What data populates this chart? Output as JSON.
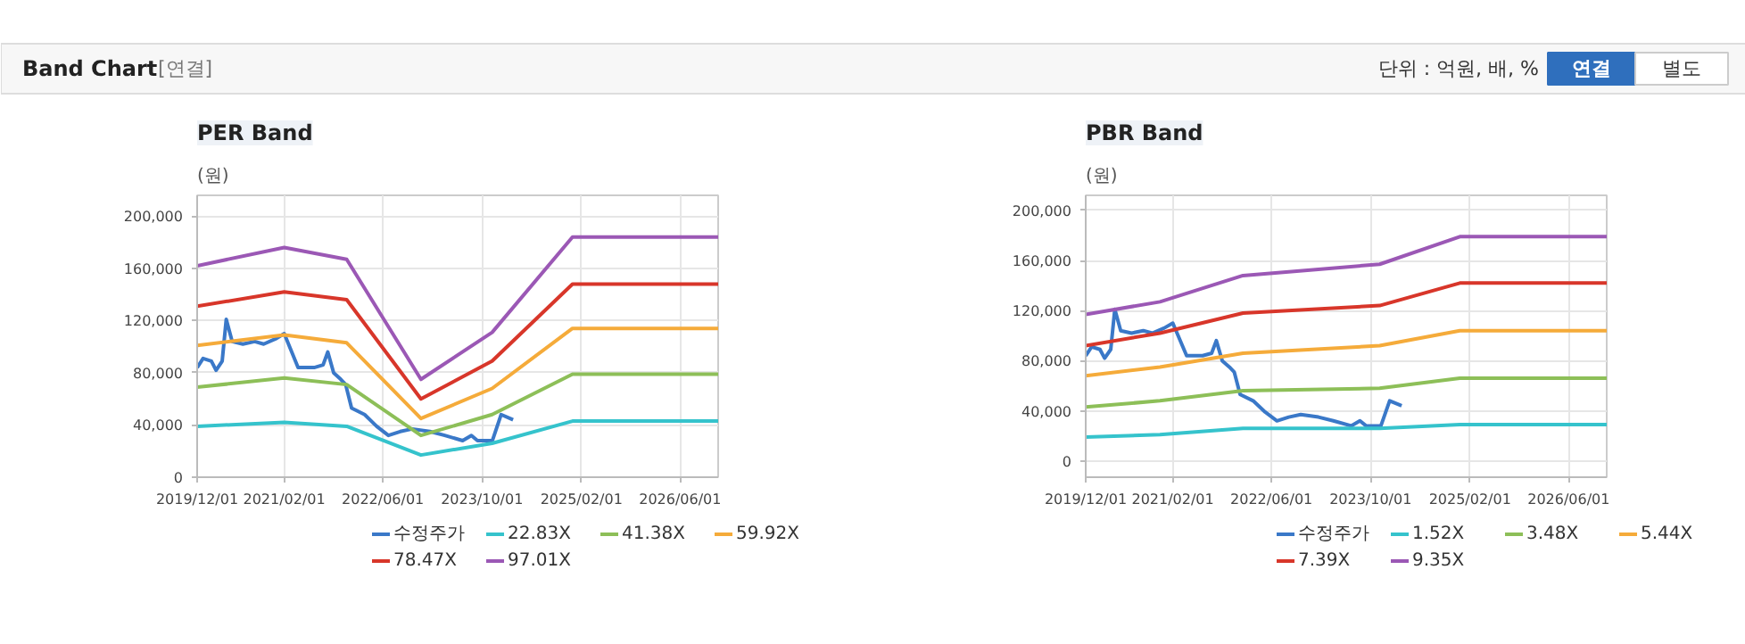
{
  "chart_data": [
    {
      "type": "other",
      "title": "Band Chart",
      "annotations": [
        "[연결]",
        "단위 : 억원, 배, %",
        "연결",
        "별도"
      ]
    },
    {
      "type": "line",
      "title": "PER Band",
      "ylabel": "(원)",
      "legend": "bottom",
      "grid": true,
      "line_style": "solid",
      "xlim": [
        "2019-12-01",
        "2026-12-05"
      ],
      "xticks": [
        {
          "value": "2019-12-01",
          "label": "2019/12/01"
        },
        {
          "value": "2021-02-01",
          "label": "2021/02/01"
        },
        {
          "value": "2022-06-01",
          "label": "2022/06/01"
        },
        {
          "value": "2023-10-01",
          "label": "2023/10/01"
        },
        {
          "value": "2025-02-01",
          "label": "2025/02/01"
        },
        {
          "value": "2026-06-01",
          "label": "2026/06/01"
        }
      ],
      "ylim": [
        0,
        216000
      ],
      "yticks": [
        {
          "value": 0,
          "label": "0"
        },
        {
          "value": 40000,
          "label": "40,000"
        },
        {
          "value": 80000,
          "label": "80,000"
        },
        {
          "value": 120000,
          "label": "120,000"
        },
        {
          "value": 160000,
          "label": "160,000"
        },
        {
          "value": 200000,
          "label": "200,000"
        }
      ],
      "series": [
        {
          "name": "수정주가",
          "color": "#3a78c8",
          "x": [
            "2019-12-01",
            "2019-12-30",
            "2020-02-09",
            "2020-03-03",
            "2020-04-02",
            "2020-04-22",
            "2020-05-21",
            "2020-07-13",
            "2020-09-09",
            "2020-10-23",
            "2020-12-20",
            "2021-02-01",
            "2021-04-10",
            "2021-06-28",
            "2021-08-11",
            "2021-09-03",
            "2021-10-02",
            "2021-11-06",
            "2021-11-30",
            "2021-12-29",
            "2022-03-03",
            "2022-05-01",
            "2022-06-28",
            "2022-08-25",
            "2022-10-23",
            "2023-01-18",
            "2023-04-01",
            "2023-06-28",
            "2023-08-10",
            "2023-09-09",
            "2023-11-21",
            "2024-01-03",
            "2024-03-02"
          ],
          "values": [
            84000,
            91000,
            89000,
            82000,
            89000,
            121000,
            104000,
            102000,
            104000,
            102000,
            106000,
            110000,
            84000,
            84000,
            86000,
            96000,
            80000,
            75000,
            71000,
            53000,
            48000,
            39000,
            32000,
            35000,
            37000,
            35000,
            32000,
            28000,
            32000,
            28000,
            28000,
            48000,
            44000
          ]
        },
        {
          "name": "22.83X",
          "color": "#35c3cc",
          "x": [
            "2019-12-01",
            "2021-02-01",
            "2021-12-05",
            "2022-12-05",
            "2023-11-20",
            "2024-12-19",
            "2026-12-05"
          ],
          "values": [
            39000,
            42000,
            39000,
            17000,
            26000,
            43000,
            43000
          ]
        },
        {
          "name": "41.38X",
          "color": "#8dbf58",
          "x": [
            "2019-12-01",
            "2021-02-01",
            "2021-12-05",
            "2022-12-05",
            "2023-11-20",
            "2024-12-19",
            "2026-12-05"
          ],
          "values": [
            69000,
            76000,
            71000,
            32000,
            48000,
            79000,
            79000
          ]
        },
        {
          "name": "59.92X",
          "color": "#f5ab3a",
          "x": [
            "2019-12-01",
            "2021-02-01",
            "2021-12-05",
            "2022-12-05",
            "2023-11-20",
            "2024-12-19",
            "2026-12-05"
          ],
          "values": [
            101000,
            109000,
            103000,
            45000,
            68000,
            114000,
            114000
          ]
        },
        {
          "name": "78.47X",
          "color": "#d8362a",
          "x": [
            "2019-12-01",
            "2021-02-01",
            "2021-12-05",
            "2022-12-05",
            "2023-11-20",
            "2024-12-19",
            "2026-12-05"
          ],
          "values": [
            131000,
            142000,
            136000,
            60000,
            89000,
            148000,
            148000
          ]
        },
        {
          "name": "97.01X",
          "color": "#9b58b5",
          "x": [
            "2019-12-01",
            "2021-02-01",
            "2021-12-05",
            "2022-12-05",
            "2023-11-20",
            "2024-12-19",
            "2026-12-05"
          ],
          "values": [
            162000,
            176000,
            167000,
            75000,
            111000,
            184000,
            184000
          ]
        }
      ]
    },
    {
      "type": "line",
      "title": "PBR Band",
      "ylabel": "(원)",
      "legend": "bottom",
      "grid": true,
      "line_style": "solid",
      "xlim": [
        "2019-12-01",
        "2026-12-05"
      ],
      "xticks": [
        {
          "value": "2019-12-01",
          "label": "2019/12/01"
        },
        {
          "value": "2021-02-01",
          "label": "2021/02/01"
        },
        {
          "value": "2022-06-01",
          "label": "2022/06/01"
        },
        {
          "value": "2023-10-01",
          "label": "2023/10/01"
        },
        {
          "value": "2025-02-01",
          "label": "2025/02/01"
        },
        {
          "value": "2026-06-01",
          "label": "2026/06/01"
        }
      ],
      "ylim": [
        -13000,
        212000
      ],
      "yticks": [
        {
          "value": 0,
          "label": "0"
        },
        {
          "value": 40000,
          "label": "40,000"
        },
        {
          "value": 80000,
          "label": "80,000"
        },
        {
          "value": 120000,
          "label": "120,000"
        },
        {
          "value": 160000,
          "label": "160,000"
        },
        {
          "value": 200000,
          "label": "200,000"
        }
      ],
      "series": [
        {
          "name": "수정주가",
          "color": "#3a78c8",
          "x": [
            "2019-12-01",
            "2019-12-30",
            "2020-02-09",
            "2020-03-03",
            "2020-04-02",
            "2020-04-22",
            "2020-05-21",
            "2020-07-13",
            "2020-09-09",
            "2020-10-23",
            "2020-12-20",
            "2021-02-01",
            "2021-04-10",
            "2021-06-28",
            "2021-08-11",
            "2021-09-03",
            "2021-10-02",
            "2021-11-06",
            "2021-11-30",
            "2021-12-29",
            "2022-03-03",
            "2022-05-01",
            "2022-06-28",
            "2022-08-25",
            "2022-10-23",
            "2023-01-18",
            "2023-04-01",
            "2023-06-28",
            "2023-08-10",
            "2023-09-09",
            "2023-11-21",
            "2024-01-03",
            "2024-03-02"
          ],
          "values": [
            84000,
            91000,
            89000,
            82000,
            89000,
            121000,
            104000,
            102000,
            104000,
            102000,
            106000,
            110000,
            84000,
            84000,
            86000,
            96000,
            80000,
            75000,
            71000,
            53000,
            48000,
            39000,
            32000,
            35000,
            37000,
            35000,
            32000,
            28000,
            32000,
            28000,
            28000,
            48000,
            44000
          ]
        },
        {
          "name": "1.52X",
          "color": "#35c3cc",
          "x": [
            "2019-12-01",
            "2020-11-30",
            "2022-01-12",
            "2023-11-15",
            "2024-12-13",
            "2026-12-05"
          ],
          "values": [
            19000,
            21000,
            26000,
            26000,
            29000,
            29000
          ]
        },
        {
          "name": "3.48X",
          "color": "#8dbf58",
          "x": [
            "2019-12-01",
            "2020-11-30",
            "2022-01-12",
            "2023-11-15",
            "2024-12-13",
            "2026-12-05"
          ],
          "values": [
            43000,
            48000,
            56000,
            58000,
            66000,
            66000
          ]
        },
        {
          "name": "5.44X",
          "color": "#f5ab3a",
          "x": [
            "2019-12-01",
            "2020-11-30",
            "2022-01-12",
            "2023-11-15",
            "2024-12-13",
            "2026-12-05"
          ],
          "values": [
            68000,
            75000,
            86000,
            92000,
            104000,
            104000
          ]
        },
        {
          "name": "7.39X",
          "color": "#d8362a",
          "x": [
            "2019-12-01",
            "2020-11-30",
            "2022-01-12",
            "2023-11-15",
            "2024-12-13",
            "2026-12-05"
          ],
          "values": [
            92000,
            102000,
            118000,
            124000,
            142000,
            142000
          ]
        },
        {
          "name": "9.35X",
          "color": "#9b58b5",
          "x": [
            "2019-12-01",
            "2020-11-30",
            "2022-01-12",
            "2023-11-15",
            "2024-12-13",
            "2026-12-05"
          ],
          "values": [
            117000,
            127000,
            148000,
            157000,
            179000,
            179000
          ]
        }
      ]
    }
  ]
}
